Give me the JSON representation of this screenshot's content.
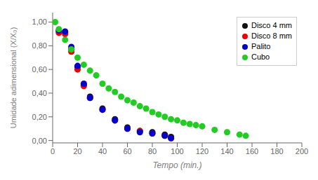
{
  "chart_data": {
    "type": "scatter",
    "xlabel": "Tempo (min.)",
    "ylabel": "Umidade adimensional (X/X₀)",
    "xlim": [
      0,
      200
    ],
    "ylim": [
      -0.02,
      1.08
    ],
    "xticks": [
      0,
      20,
      40,
      60,
      80,
      100,
      120,
      140,
      160,
      180,
      200
    ],
    "yticks": [
      {
        "value": 0.0,
        "label": "0,00"
      },
      {
        "value": 0.2,
        "label": "0,20"
      },
      {
        "value": 0.4,
        "label": "0,40"
      },
      {
        "value": 0.6,
        "label": "0,60"
      },
      {
        "value": 0.8,
        "label": "0,80"
      },
      {
        "value": 1.0,
        "label": "1,00"
      }
    ],
    "legend": "upper right",
    "marker": "circle",
    "series": [
      {
        "name": "Disco 4 mm",
        "color": "#111111",
        "x": [
          5,
          10,
          15,
          20,
          25,
          30,
          40,
          50,
          60,
          70,
          80,
          90,
          95
        ],
        "values": [
          0.92,
          0.91,
          0.77,
          0.62,
          0.47,
          0.37,
          0.27,
          0.18,
          0.11,
          0.08,
          0.07,
          0.05,
          0.03
        ]
      },
      {
        "name": "Disco 8 mm",
        "color": "#ee0000",
        "x": [
          5,
          10,
          15,
          20,
          25,
          30,
          40,
          50,
          60,
          70,
          80,
          90,
          95
        ],
        "values": [
          0.91,
          0.9,
          0.75,
          0.6,
          0.46,
          0.36,
          0.26,
          0.17,
          0.1,
          0.08,
          0.06,
          0.04,
          0.02
        ]
      },
      {
        "name": "Palito",
        "color": "#0000cc",
        "x": [
          5,
          10,
          15,
          20,
          25,
          30,
          40,
          50,
          60,
          70,
          80,
          90,
          95
        ],
        "values": [
          0.93,
          0.92,
          0.79,
          0.63,
          0.48,
          0.36,
          0.26,
          0.17,
          0.1,
          0.07,
          0.06,
          0.04,
          0.02
        ]
      },
      {
        "name": "Cubo",
        "color": "#22cc22",
        "x": [
          2,
          5,
          10,
          15,
          20,
          25,
          30,
          35,
          40,
          45,
          50,
          55,
          60,
          65,
          70,
          75,
          80,
          85,
          90,
          95,
          100,
          105,
          110,
          115,
          120,
          130,
          140,
          150,
          155
        ],
        "values": [
          1.0,
          0.94,
          0.85,
          0.77,
          0.7,
          0.64,
          0.59,
          0.55,
          0.48,
          0.44,
          0.41,
          0.37,
          0.34,
          0.32,
          0.29,
          0.27,
          0.24,
          0.22,
          0.2,
          0.18,
          0.17,
          0.15,
          0.14,
          0.13,
          0.12,
          0.09,
          0.07,
          0.05,
          0.04
        ]
      }
    ]
  }
}
